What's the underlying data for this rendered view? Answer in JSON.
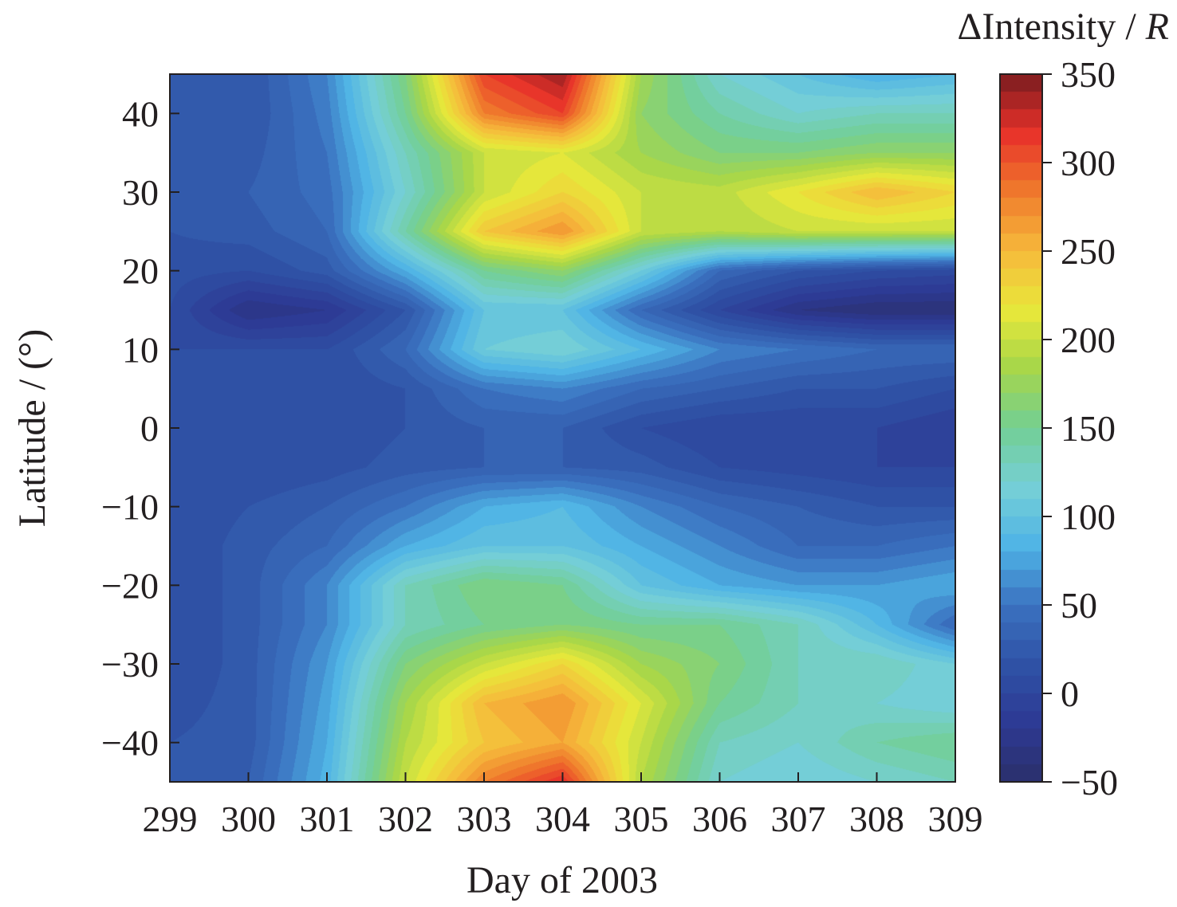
{
  "chart_data": {
    "type": "heatmap",
    "xlabel": "Day of 2003",
    "ylabel": "Latitude / (°)",
    "colorbar_label": "ΔIntensity / ",
    "colorbar_unit": "R",
    "xlim": [
      299,
      309
    ],
    "ylim": [
      -45,
      45
    ],
    "zlim": [
      -50,
      350
    ],
    "xticks": [
      299,
      300,
      301,
      302,
      303,
      304,
      305,
      306,
      307,
      308,
      309
    ],
    "xtick_labels": [
      "299",
      "300",
      "301",
      "302",
      "303",
      "304",
      "305",
      "306",
      "307",
      "308",
      "309"
    ],
    "yticks": [
      40,
      30,
      20,
      10,
      0,
      -10,
      -20,
      -30,
      -40
    ],
    "ytick_labels": [
      "40",
      "30",
      "20",
      "10",
      "0",
      "−10",
      "−20",
      "−30",
      "−40"
    ],
    "cbar_ticks": [
      350,
      300,
      250,
      200,
      150,
      100,
      50,
      0,
      -50
    ],
    "cbar_tick_labels": [
      "350",
      "300",
      "250",
      "200",
      "150",
      "100",
      "50",
      "0",
      "−50"
    ],
    "colormap": [
      "#2b2f6b",
      "#2d3a94",
      "#2f52a6",
      "#3b72c0",
      "#4fb4e6",
      "#76cfd6",
      "#72cf94",
      "#a6d64a",
      "#e8e83a",
      "#f6b93b",
      "#ef7a2c",
      "#e8312a",
      "#7a1c1f"
    ],
    "grid": false,
    "x": [
      299,
      300,
      301,
      302,
      303,
      304,
      305,
      306,
      307,
      308,
      309
    ],
    "y": [
      45,
      40,
      35,
      30,
      25,
      20,
      15,
      10,
      5,
      0,
      -5,
      -10,
      -15,
      -20,
      -25,
      -30,
      -35,
      -40,
      -45
    ],
    "z": [
      [
        20,
        20,
        60,
        160,
        310,
        340,
        180,
        120,
        100,
        80,
        90
      ],
      [
        20,
        20,
        55,
        150,
        280,
        310,
        170,
        140,
        120,
        130,
        130
      ],
      [
        20,
        25,
        50,
        130,
        200,
        210,
        180,
        160,
        160,
        170,
        170
      ],
      [
        20,
        30,
        45,
        120,
        200,
        230,
        200,
        195,
        220,
        250,
        230
      ],
      [
        20,
        25,
        40,
        140,
        240,
        270,
        200,
        190,
        200,
        200,
        200
      ],
      [
        15,
        10,
        25,
        80,
        150,
        170,
        110,
        40,
        20,
        10,
        5
      ],
      [
        10,
        -30,
        -20,
        20,
        100,
        100,
        40,
        0,
        -30,
        -40,
        -40
      ],
      [
        10,
        10,
        10,
        40,
        110,
        120,
        90,
        60,
        50,
        40,
        40
      ],
      [
        10,
        10,
        10,
        20,
        50,
        60,
        40,
        30,
        20,
        20,
        10
      ],
      [
        10,
        10,
        10,
        20,
        30,
        30,
        10,
        0,
        0,
        0,
        -10
      ],
      [
        10,
        10,
        15,
        25,
        30,
        30,
        25,
        10,
        5,
        0,
        0
      ],
      [
        10,
        20,
        30,
        50,
        80,
        90,
        60,
        40,
        30,
        20,
        20
      ],
      [
        10,
        25,
        40,
        80,
        100,
        100,
        80,
        60,
        40,
        40,
        50
      ],
      [
        10,
        25,
        60,
        130,
        160,
        150,
        100,
        80,
        70,
        70,
        80
      ],
      [
        10,
        25,
        60,
        130,
        150,
        160,
        150,
        150,
        130,
        90,
        40
      ],
      [
        10,
        25,
        70,
        160,
        200,
        230,
        180,
        160,
        130,
        130,
        110
      ],
      [
        15,
        25,
        75,
        180,
        250,
        270,
        210,
        150,
        130,
        120,
        110
      ],
      [
        20,
        25,
        80,
        190,
        240,
        260,
        200,
        130,
        120,
        140,
        150
      ],
      [
        20,
        30,
        85,
        200,
        280,
        320,
        190,
        120,
        110,
        120,
        130
      ]
    ]
  }
}
